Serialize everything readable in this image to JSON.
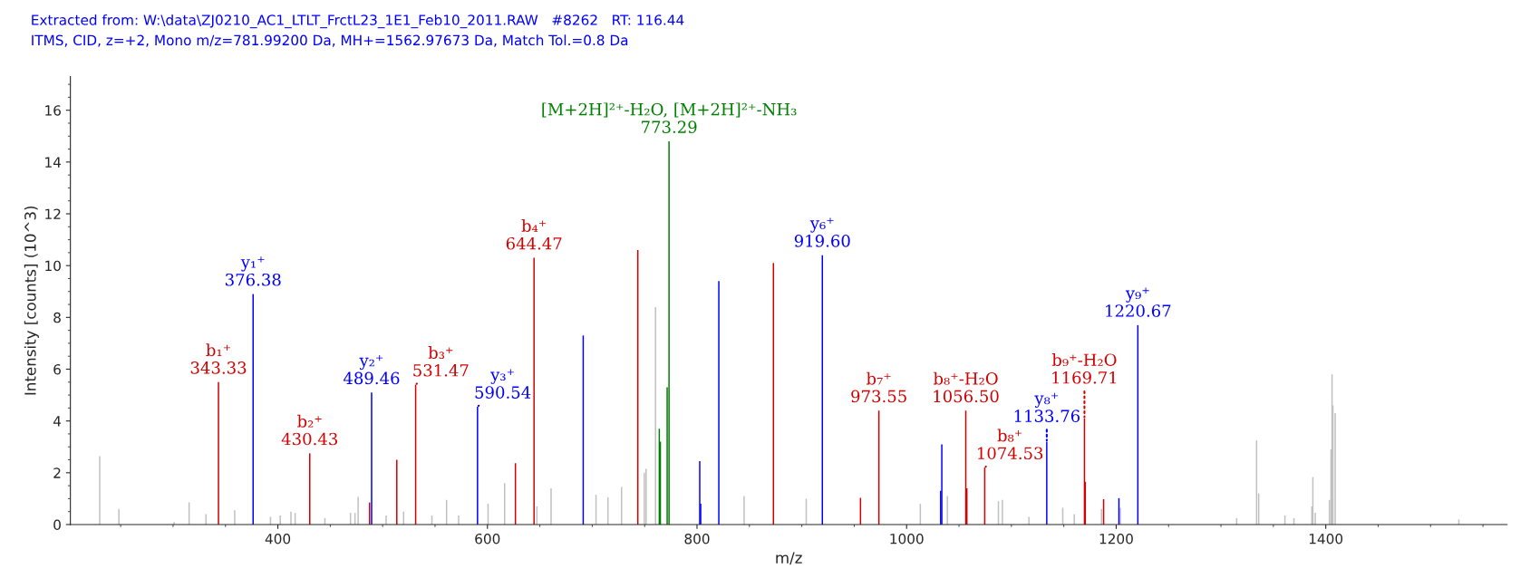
{
  "chart_data": {
    "type": "bar",
    "title": "Extracted from: W:\\data\\ZJ0210_AC1_LTLT_FrctL23_1E1_Feb10_2011.RAW   #8262   RT: 116.44",
    "subtitle": "ITMS, CID, z=+2, Mono m/z=781.99200 Da, MH+=1562.97673 Da, Match Tol.=0.8 Da",
    "xlabel": "m/z",
    "ylabel": "Intensity [counts] (10^3)",
    "xlim": [
      202,
      1573
    ],
    "ylim": [
      0,
      17.3
    ],
    "xticks": [
      400,
      600,
      800,
      1000,
      1200,
      1400
    ],
    "yticks": [
      0,
      2,
      4,
      6,
      8,
      10,
      12,
      14,
      16
    ],
    "grid": false,
    "legend": false,
    "series": [
      {
        "color": "#c0c0c0",
        "x": [
          230,
          248.3,
          301,
          315.3,
          331.4,
          358.8,
          393,
          402.3,
          412.5,
          416.5,
          444.9,
          469.3,
          473.6,
          476.6,
          503.3,
          520,
          547,
          561,
          572.5,
          600.6,
          616.4,
          647.2,
          660.7,
          703.6,
          715,
          728,
          749.7,
          751.4,
          760.4,
          844.9,
          904.2,
          1013.1,
          1038.9,
          1087.6,
          1091.4,
          1116.7,
          1149,
          1160,
          1186,
          1204,
          1315,
          1334,
          1336,
          1361,
          1369.6,
          1386.7,
          1387.7,
          1390,
          1403.5,
          1405,
          1406,
          1406.8,
          1409,
          1527
        ],
        "values": [
          2.64,
          0.6,
          0.1,
          0.86,
          0.4,
          0.55,
          0.3,
          0.35,
          0.5,
          0.45,
          0.25,
          0.45,
          0.45,
          1.07,
          0.35,
          0.5,
          0.35,
          0.95,
          0.35,
          0.8,
          1.6,
          0.7,
          1.4,
          1.15,
          1.05,
          1.45,
          2.0,
          2.15,
          8.4,
          1.1,
          1.0,
          0.8,
          1.1,
          0.9,
          0.95,
          0.3,
          0.65,
          0.4,
          0.6,
          0.65,
          0.25,
          3.25,
          1.2,
          0.35,
          0.25,
          0.7,
          1.83,
          0.45,
          0.95,
          2.9,
          5.8,
          4.6,
          4.3,
          0.2
        ]
      },
      {
        "color": "#d40000",
        "x": [
          343.33,
          430.43,
          487.5,
          513.5,
          531.47,
          626.7,
          644.47,
          743.5,
          872.9,
          956,
          973.55,
          1056.5,
          1057.5,
          1074.53,
          1169.71,
          1170.5,
          1188
        ],
        "values": [
          5.5,
          2.75,
          0.85,
          2.5,
          5.4,
          2.37,
          10.3,
          10.6,
          10.1,
          1.03,
          4.4,
          4.4,
          1.4,
          2.2,
          4.1,
          1.65,
          0.98
        ]
      },
      {
        "color": "#0000ff",
        "x": [
          376.38,
          489.46,
          590.54,
          691.4,
          802.6,
          803.5,
          820.8,
          919.6,
          1032.5,
          1033.6,
          1133.76,
          1202.6,
          1220.67
        ],
        "values": [
          8.9,
          5.1,
          4.55,
          7.3,
          2.45,
          0.8,
          9.4,
          10.4,
          1.3,
          3.1,
          3.2,
          1.02,
          7.7
        ]
      },
      {
        "color": "#008000",
        "x": [
          764,
          765,
          771.5,
          773.29
        ],
        "values": [
          3.7,
          3.2,
          5.3,
          14.8
        ]
      }
    ],
    "annotations": [
      {
        "text": "b₁⁺\n343.33",
        "x": 343.33,
        "y": 5.5
      },
      {
        "text": "y₁⁺\n376.38",
        "x": 376.38,
        "y": 8.9
      },
      {
        "text": "b₂⁺\n430.43",
        "x": 430.43,
        "y": 2.75
      },
      {
        "text": "y₂⁺\n489.46",
        "x": 489.46,
        "y": 5.1
      },
      {
        "text": "b₃⁺\n531.47",
        "x": 531.47,
        "y": 5.4
      },
      {
        "text": "y₃⁺\n590.54",
        "x": 590.54,
        "y": 4.55
      },
      {
        "text": "b₄⁺\n644.47",
        "x": 644.47,
        "y": 10.3
      },
      {
        "text": "[M+2H]²⁺-H₂O, [M+2H]²⁺-NH₃\n773.29",
        "x": 773.29,
        "y": 14.8
      },
      {
        "text": "y₆⁺\n919.60",
        "x": 919.6,
        "y": 10.4
      },
      {
        "text": "b₇⁺\n973.55",
        "x": 973.55,
        "y": 4.4
      },
      {
        "text": "b₈⁺-H₂O\n1056.50",
        "x": 1056.5,
        "y": 4.4
      },
      {
        "text": "b₈⁺\n1074.53",
        "x": 1074.53,
        "y": 2.2
      },
      {
        "text": "y₈⁺\n1133.76",
        "x": 1133.76,
        "y": 3.2
      },
      {
        "text": "b₉⁺-H₂O\n1169.71",
        "x": 1169.71,
        "y": 4.1
      },
      {
        "text": "y₉⁺\n1220.67",
        "x": 1220.67,
        "y": 7.7
      }
    ]
  }
}
